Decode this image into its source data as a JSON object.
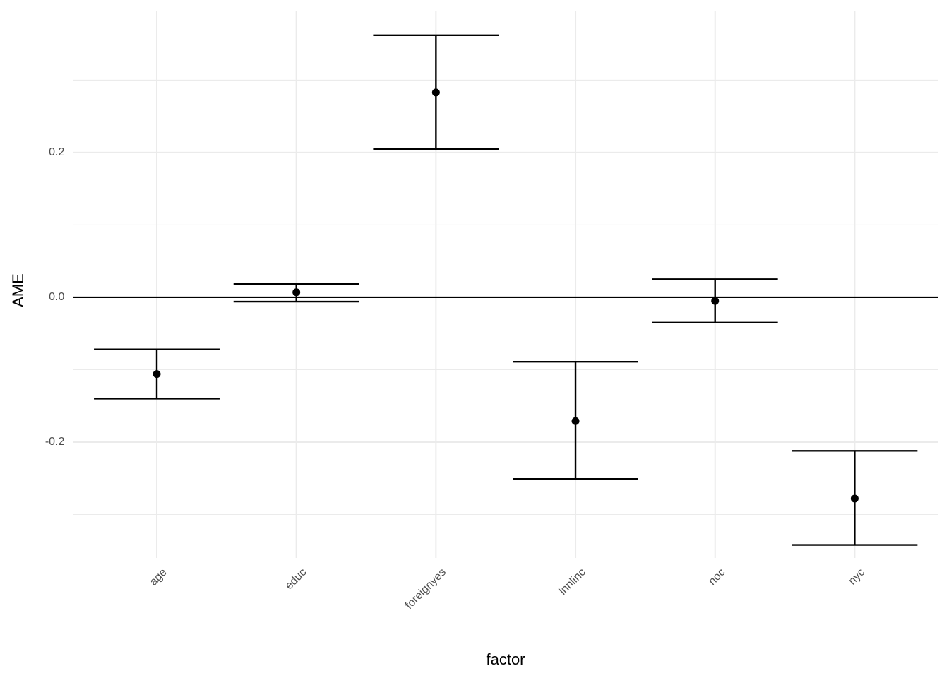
{
  "chart_data": {
    "type": "errorbar",
    "x_label": "factor",
    "y_label": "AME",
    "categories": [
      "age",
      "educ",
      "foreignyes",
      "lnnlinc",
      "noc",
      "nyc"
    ],
    "values": [
      -0.106,
      0.007,
      0.283,
      -0.171,
      -0.005,
      -0.278
    ],
    "lower": [
      -0.14,
      -0.006,
      0.205,
      -0.251,
      -0.035,
      -0.342
    ],
    "upper": [
      -0.072,
      0.0185,
      0.362,
      -0.089,
      0.025,
      -0.212
    ],
    "color": "#000000",
    "ylim": [
      -0.36,
      0.396
    ],
    "yticks": [
      {
        "value": -0.2,
        "label": "-0.2"
      },
      {
        "value": 0,
        "label": "0.0"
      },
      {
        "value": 0.2,
        "label": "0.2"
      }
    ],
    "minor_yticks": [
      -0.3,
      -0.1,
      0.1,
      0.3
    ],
    "hline": 0,
    "grid": true
  }
}
